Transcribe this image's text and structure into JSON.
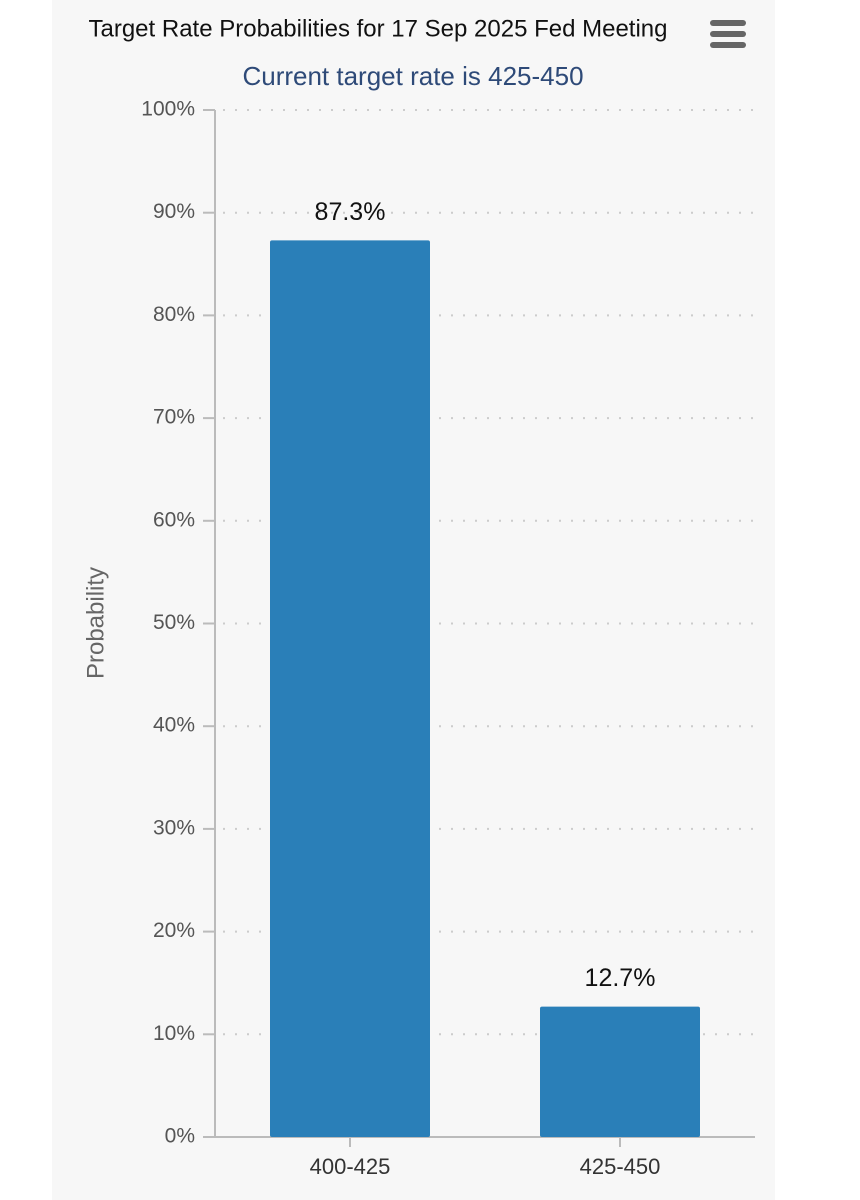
{
  "chart_data": {
    "type": "bar",
    "title": "Target Rate Probabilities for 17 Sep 2025 Fed Meeting",
    "subtitle": "Current target rate is 425-450",
    "y_label": "Probability",
    "categories": [
      "400-425",
      "425-450"
    ],
    "values": [
      87.3,
      12.7
    ],
    "value_labels": [
      "87.3%",
      "12.7%"
    ],
    "color": "#2a7fb8",
    "ylim": [
      0,
      100
    ],
    "yticks": [
      {
        "value": 0,
        "label": "0%"
      },
      {
        "value": 10,
        "label": "10%"
      },
      {
        "value": 20,
        "label": "20%"
      },
      {
        "value": 30,
        "label": "30%"
      },
      {
        "value": 40,
        "label": "40%"
      },
      {
        "value": 50,
        "label": "50%"
      },
      {
        "value": 60,
        "label": "60%"
      },
      {
        "value": 70,
        "label": "70%"
      },
      {
        "value": 80,
        "label": "80%"
      },
      {
        "value": 90,
        "label": "90%"
      },
      {
        "value": 100,
        "label": "100%"
      }
    ],
    "grid": true
  }
}
